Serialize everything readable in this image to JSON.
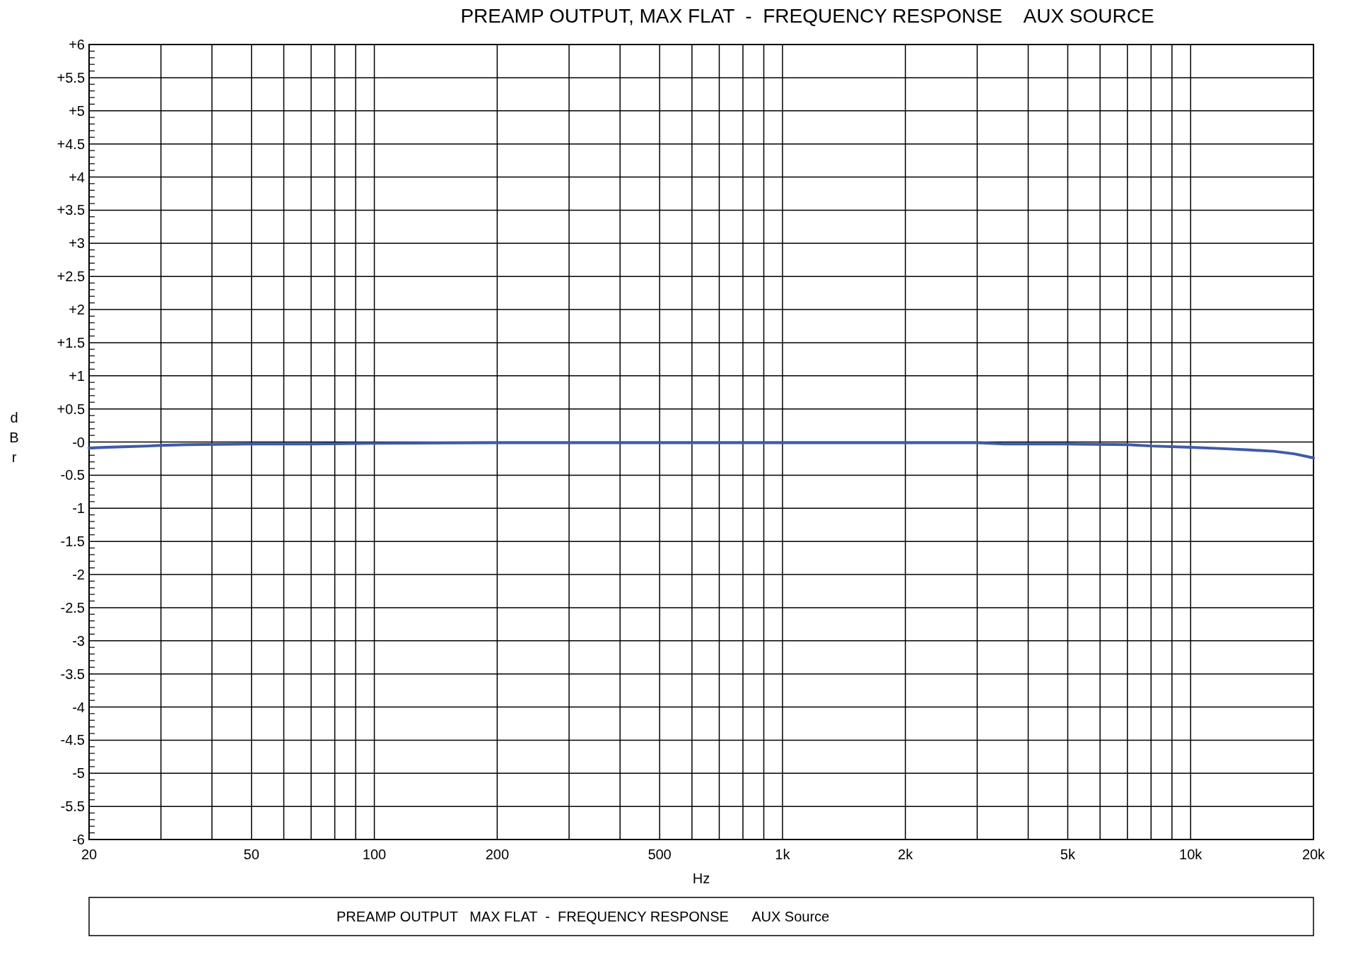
{
  "chart_data": {
    "type": "line",
    "title": "PREAMP OUTPUT, MAX FLAT  -  FREQUENCY RESPONSE    AUX SOURCE",
    "xlabel": "Hz",
    "ylabel": "dBr",
    "log": "x",
    "grid": true,
    "line_style": "solid",
    "marker": "none",
    "xlim": [
      20,
      20000
    ],
    "ylim": [
      -6,
      6
    ],
    "xticks": [
      20,
      {
        "value": 30,
        "label": null
      },
      {
        "value": 40,
        "label": null
      },
      50,
      {
        "value": 60,
        "label": null
      },
      {
        "value": 70,
        "label": null
      },
      {
        "value": 80,
        "label": null
      },
      {
        "value": 90,
        "label": null
      },
      100,
      200,
      {
        "value": 300,
        "label": null
      },
      {
        "value": 400,
        "label": null
      },
      500,
      {
        "value": 600,
        "label": null
      },
      {
        "value": 700,
        "label": null
      },
      {
        "value": 800,
        "label": null
      },
      {
        "value": 900,
        "label": null
      },
      {
        "value": 1000,
        "label": "1k"
      },
      {
        "value": 2000,
        "label": "2k"
      },
      {
        "value": 3000,
        "label": null
      },
      {
        "value": 4000,
        "label": null
      },
      {
        "value": 5000,
        "label": "5k"
      },
      {
        "value": 6000,
        "label": null
      },
      {
        "value": 7000,
        "label": null
      },
      {
        "value": 8000,
        "label": null
      },
      {
        "value": 9000,
        "label": null
      },
      {
        "value": 10000,
        "label": "10k"
      },
      {
        "value": 20000,
        "label": "20k"
      }
    ],
    "yticks": [
      {
        "value": 6,
        "label": "+6"
      },
      {
        "value": 5.5,
        "label": "+5.5"
      },
      {
        "value": 5,
        "label": "+5"
      },
      {
        "value": 4.5,
        "label": "+4.5"
      },
      {
        "value": 4,
        "label": "+4"
      },
      {
        "value": 3.5,
        "label": "+3.5"
      },
      {
        "value": 3,
        "label": "+3"
      },
      {
        "value": 2.5,
        "label": "+2.5"
      },
      {
        "value": 2,
        "label": "+2"
      },
      {
        "value": 1.5,
        "label": "+1.5"
      },
      {
        "value": 1,
        "label": "+1"
      },
      {
        "value": 0.5,
        "label": "+0.5"
      },
      {
        "value": 0,
        "label": "-0"
      },
      -0.5,
      -1,
      -1.5,
      -2,
      -2.5,
      -3,
      -3.5,
      -4,
      -4.5,
      -5,
      -5.5,
      -6
    ],
    "x": [
      20,
      22,
      25,
      28,
      30,
      35,
      50,
      70,
      100,
      200,
      2000,
      3000,
      3500,
      4000,
      5000,
      7000,
      8000,
      10000,
      12000,
      14000,
      16000,
      18000,
      20000
    ],
    "series": [
      {
        "color": "#3f5aa8",
        "values": [
          -0.09,
          -0.08,
          -0.07,
          -0.06,
          -0.05,
          -0.04,
          -0.03,
          -0.03,
          -0.02,
          -0.01,
          -0.01,
          -0.01,
          -0.03,
          -0.03,
          -0.03,
          -0.04,
          -0.06,
          -0.08,
          -0.1,
          -0.12,
          -0.14,
          -0.18,
          -0.24
        ]
      }
    ],
    "annotations": [
      "PREAMP OUTPUT   MAX FLAT  -  FREQUENCY RESPONSE      AUX Source"
    ]
  }
}
